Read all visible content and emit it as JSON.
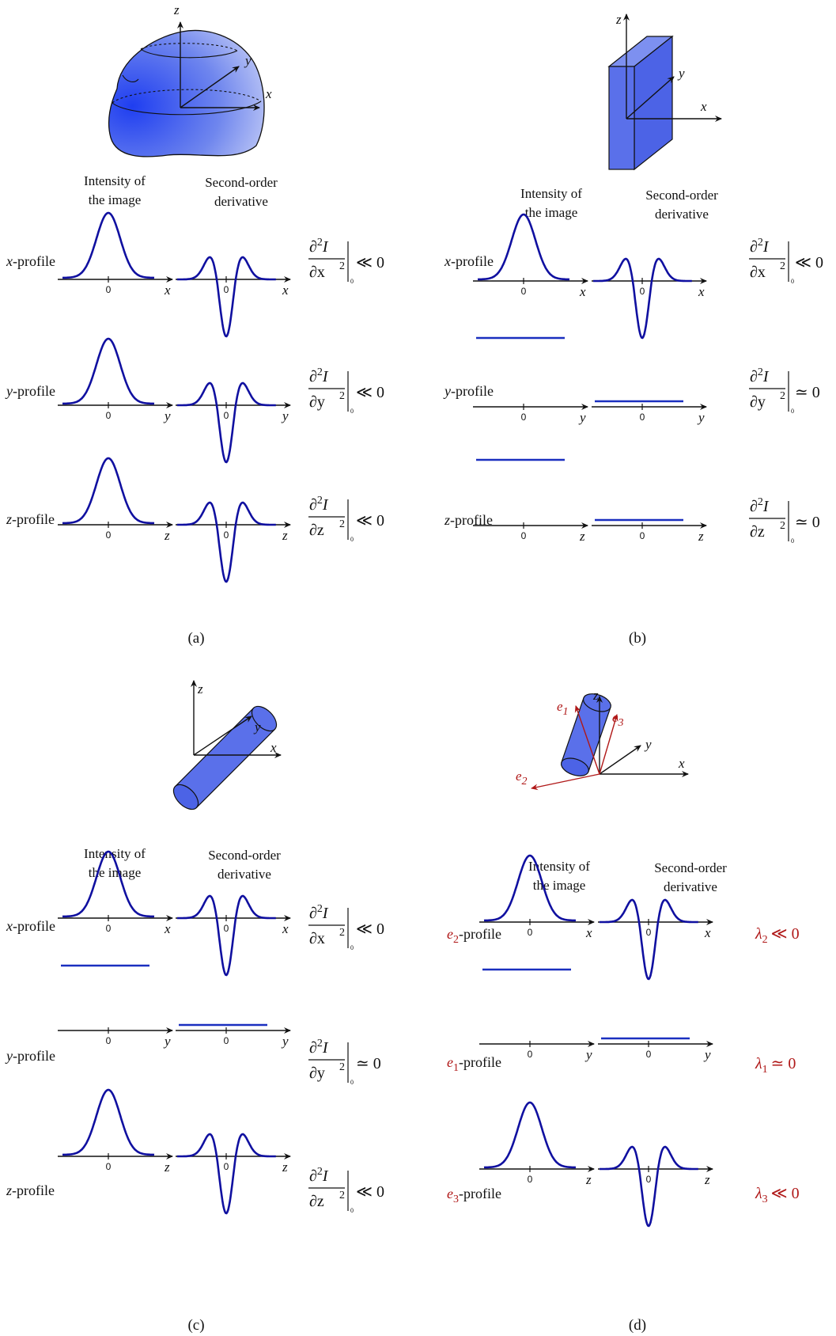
{
  "colors": {
    "curve": "#1010a0",
    "shape_fill": "#4a62e8",
    "eigen_red": "#b01818"
  },
  "headers": {
    "intensity": [
      "Intensity of",
      "the image"
    ],
    "second_order": [
      "Second-order",
      "derivative"
    ]
  },
  "tick_zero": "0",
  "panels": [
    {
      "caption": "(a)",
      "shape": "blob",
      "axes3d": [
        "z",
        "y",
        "x"
      ],
      "rows": [
        {
          "var": "x",
          "profile_label": "-profile",
          "intensity": "peak",
          "deriv": "dip",
          "eq_den": "∂x",
          "eq_rel": "≪ 0"
        },
        {
          "var": "y",
          "profile_label": "-profile",
          "intensity": "peak",
          "deriv": "dip",
          "eq_den": "∂y",
          "eq_rel": "≪ 0"
        },
        {
          "var": "z",
          "profile_label": "-profile",
          "intensity": "peak",
          "deriv": "dip",
          "eq_den": "∂z",
          "eq_rel": "≪ 0"
        }
      ]
    },
    {
      "caption": "(b)",
      "shape": "slab",
      "axes3d": [
        "z",
        "y",
        "x"
      ],
      "rows": [
        {
          "var": "x",
          "profile_label": "-profile",
          "intensity": "peak",
          "deriv": "dip",
          "eq_den": "∂x",
          "eq_rel": "≪ 0"
        },
        {
          "var": "y",
          "profile_label": "-profile",
          "intensity": "flat",
          "deriv": "flat",
          "eq_den": "∂y",
          "eq_rel": "≃ 0"
        },
        {
          "var": "z",
          "profile_label": "-profile",
          "intensity": "flat",
          "deriv": "flat",
          "eq_den": "∂z",
          "eq_rel": "≃ 0"
        }
      ]
    },
    {
      "caption": "(c)",
      "shape": "cylinder",
      "axes3d": [
        "z",
        "y",
        "x"
      ],
      "rows": [
        {
          "var": "x",
          "profile_label": "-profile",
          "intensity": "peak",
          "deriv": "dip",
          "eq_den": "∂x",
          "eq_rel": "≪ 0"
        },
        {
          "var": "y",
          "profile_label": "-profile",
          "intensity": "flat",
          "deriv": "flat",
          "eq_den": "∂y",
          "eq_rel": "≃ 0"
        },
        {
          "var": "z",
          "profile_label": "-profile",
          "intensity": "peak",
          "deriv": "dip",
          "eq_den": "∂z",
          "eq_rel": "≪ 0"
        }
      ]
    },
    {
      "caption": "(d)",
      "shape": "cylinder-tilted",
      "axes3d": [
        "z",
        "y",
        "x"
      ],
      "eigen_vectors": [
        "e",
        "e",
        "e"
      ],
      "eigen_subs": [
        "1",
        "3",
        "2"
      ],
      "rows": [
        {
          "vec": "e",
          "vec_sub": "2",
          "profile_label": "-profile",
          "axis": "x",
          "intensity": "peak",
          "deriv": "dip",
          "lambda": "λ",
          "lambda_sub": "2",
          "rel": "≪ 0"
        },
        {
          "vec": "e",
          "vec_sub": "1",
          "profile_label": "-profile",
          "axis": "y",
          "intensity": "flat",
          "deriv": "flat",
          "lambda": "λ",
          "lambda_sub": "1",
          "rel": "≃ 0"
        },
        {
          "vec": "e",
          "vec_sub": "3",
          "profile_label": "-profile",
          "axis": "z",
          "intensity": "peak",
          "deriv": "dip",
          "lambda": "λ",
          "lambda_sub": "3",
          "rel": "≪ 0"
        }
      ]
    }
  ]
}
